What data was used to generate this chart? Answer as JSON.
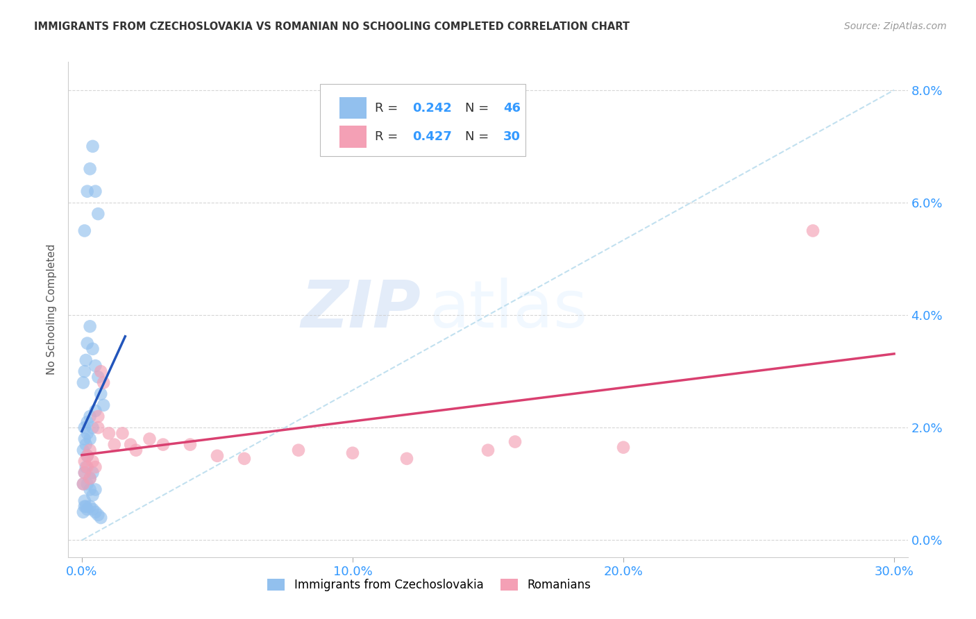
{
  "title": "IMMIGRANTS FROM CZECHOSLOVAKIA VS ROMANIAN NO SCHOOLING COMPLETED CORRELATION CHART",
  "source": "Source: ZipAtlas.com",
  "ylabel_label": "No Schooling Completed",
  "xlim": [
    -0.005,
    0.305
  ],
  "ylim": [
    -0.003,
    0.085
  ],
  "color_blue": "#92C0EE",
  "color_pink": "#F4A0B5",
  "trendline_blue": "#2255BB",
  "trendline_pink": "#D94070",
  "dashed_line_color": "#BBDDEE",
  "watermark_zip": "ZIP",
  "watermark_atlas": "atlas",
  "blue_x": [
    0.0005,
    0.001,
    0.0015,
    0.002,
    0.002,
    0.003,
    0.003,
    0.004,
    0.004,
    0.005,
    0.0005,
    0.001,
    0.001,
    0.0015,
    0.002,
    0.002,
    0.003,
    0.003,
    0.004,
    0.005,
    0.0005,
    0.001,
    0.0015,
    0.002,
    0.003,
    0.004,
    0.005,
    0.006,
    0.007,
    0.008,
    0.0005,
    0.001,
    0.001,
    0.0015,
    0.002,
    0.003,
    0.004,
    0.005,
    0.006,
    0.007,
    0.001,
    0.002,
    0.003,
    0.004,
    0.005,
    0.006
  ],
  "blue_y": [
    0.01,
    0.012,
    0.013,
    0.01,
    0.015,
    0.009,
    0.011,
    0.008,
    0.012,
    0.009,
    0.016,
    0.018,
    0.02,
    0.017,
    0.021,
    0.019,
    0.022,
    0.018,
    0.02,
    0.023,
    0.028,
    0.03,
    0.032,
    0.035,
    0.038,
    0.034,
    0.031,
    0.029,
    0.026,
    0.024,
    0.005,
    0.006,
    0.007,
    0.006,
    0.0055,
    0.006,
    0.0055,
    0.005,
    0.0045,
    0.004,
    0.055,
    0.062,
    0.066,
    0.07,
    0.062,
    0.058
  ],
  "pink_x": [
    0.0005,
    0.001,
    0.001,
    0.002,
    0.002,
    0.003,
    0.003,
    0.004,
    0.005,
    0.006,
    0.006,
    0.007,
    0.008,
    0.01,
    0.012,
    0.015,
    0.018,
    0.02,
    0.025,
    0.03,
    0.04,
    0.05,
    0.06,
    0.08,
    0.1,
    0.12,
    0.15,
    0.16,
    0.2,
    0.27
  ],
  "pink_y": [
    0.01,
    0.012,
    0.014,
    0.013,
    0.015,
    0.011,
    0.016,
    0.014,
    0.013,
    0.02,
    0.022,
    0.03,
    0.028,
    0.019,
    0.017,
    0.019,
    0.017,
    0.016,
    0.018,
    0.017,
    0.017,
    0.015,
    0.0145,
    0.016,
    0.0155,
    0.0145,
    0.016,
    0.0175,
    0.0165,
    0.055
  ],
  "xtick_vals": [
    0.0,
    0.1,
    0.2,
    0.3
  ],
  "ytick_vals": [
    0.0,
    0.02,
    0.04,
    0.06,
    0.08
  ]
}
